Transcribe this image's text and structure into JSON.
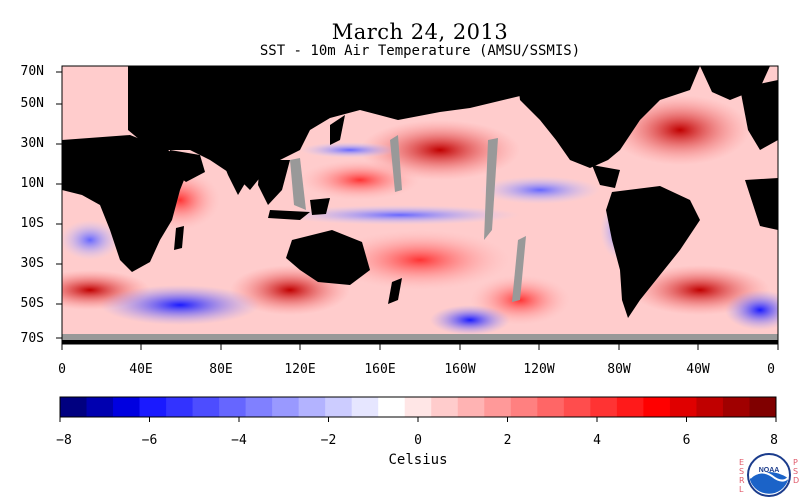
{
  "header": {
    "date": "March 24, 2013",
    "subtitle": "SST - 10m Air Temperature (AMSU/SSMIS)"
  },
  "map": {
    "lat_labels": [
      "70N",
      "50N",
      "30N",
      "10N",
      "10S",
      "30S",
      "50S",
      "70S"
    ],
    "lon_labels": [
      "0",
      "40E",
      "80E",
      "120E",
      "160E",
      "160W",
      "120W",
      "80W",
      "40W",
      "0"
    ],
    "land_color": "#000000",
    "nodata_color": "#999999"
  },
  "colorbar": {
    "tick_labels": [
      "−8",
      "−6",
      "−4",
      "−2",
      "0",
      "2",
      "4",
      "6",
      "8"
    ],
    "unit": "Celsius",
    "min": -8,
    "max": 8,
    "colors": [
      "#000080",
      "#0000b0",
      "#0000e0",
      "#1a1aff",
      "#3333ff",
      "#4d4dff",
      "#6666ff",
      "#8080ff",
      "#9999ff",
      "#b3b3ff",
      "#ccccff",
      "#e6e6ff",
      "#ffffff",
      "#ffe6e6",
      "#ffcccc",
      "#ffb3b3",
      "#ff9999",
      "#ff8080",
      "#ff6666",
      "#ff4d4d",
      "#ff3333",
      "#ff1a1a",
      "#ff0000",
      "#e00000",
      "#c00000",
      "#a00000",
      "#800000"
    ]
  },
  "branding": {
    "left_text": "ESRL",
    "right_text": "PSD",
    "logo": "noaa-logo"
  }
}
